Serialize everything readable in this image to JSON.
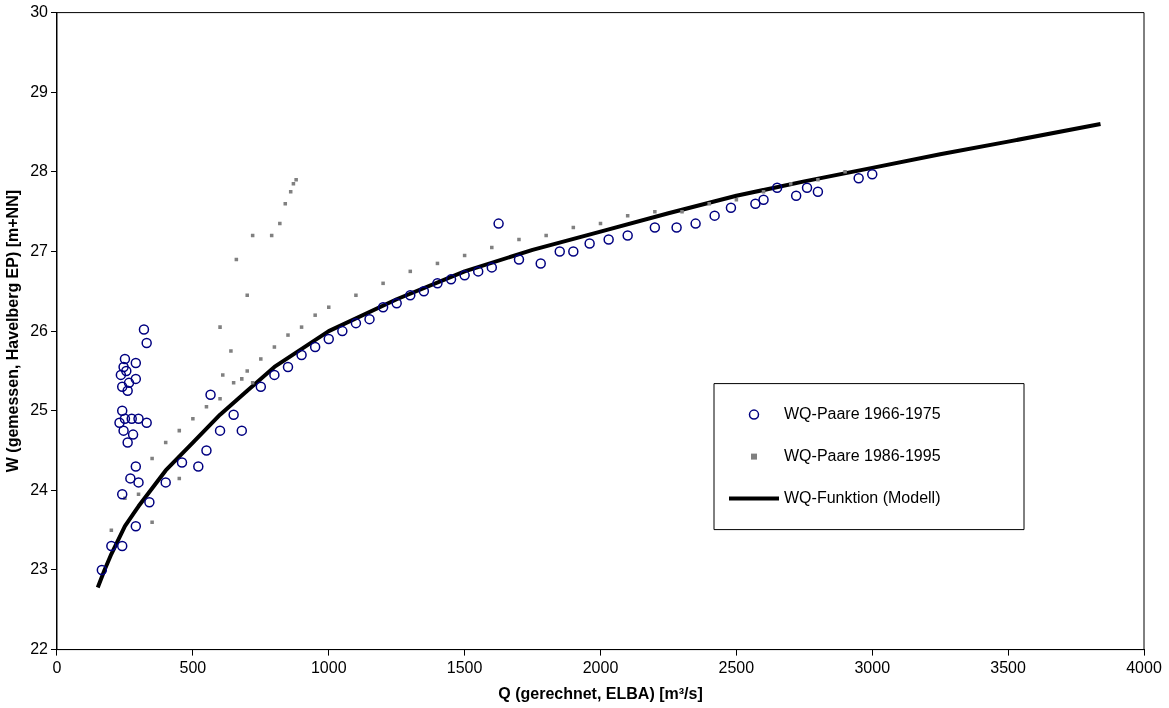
{
  "chart_data": {
    "type": "scatter",
    "xlabel": "Q (gerechnet, ELBA) [m³/s]",
    "ylabel": "W (gemessen, Havelberg EP) [m+NN]",
    "xlim": [
      0,
      4000
    ],
    "xticks": [
      0,
      500,
      1000,
      1500,
      2000,
      2500,
      3000,
      3500,
      4000
    ],
    "ylim": [
      22,
      30
    ],
    "yticks": [
      22,
      23,
      24,
      25,
      26,
      27,
      28,
      29,
      30
    ],
    "grid": false,
    "legend": "bottom right",
    "series": [
      {
        "name": "WQ-Paare 1966-1975",
        "marker": "circle",
        "color": "#000080",
        "x": [
          165,
          200,
          240,
          290,
          340,
          400,
          460,
          520,
          550,
          600,
          650,
          680,
          750,
          800,
          850,
          900,
          950,
          1000,
          1050,
          1100,
          1150,
          1200,
          1250,
          1300,
          1350,
          1400,
          1450,
          1500,
          1550,
          1600,
          1700,
          1780,
          1850,
          1900,
          1960,
          2030,
          2100,
          2200,
          2280,
          2350,
          2420,
          2480,
          2570,
          2600,
          2650,
          2720,
          2760,
          2800,
          2950,
          3000,
          230,
          240,
          250,
          240,
          235,
          245,
          250,
          255,
          265,
          260,
          290,
          275,
          300,
          280,
          245,
          260,
          330,
          320,
          330,
          290,
          565,
          1625,
          270,
          240,
          290,
          300
        ],
        "values": [
          23.0,
          23.3,
          23.3,
          23.55,
          23.85,
          24.1,
          24.35,
          24.3,
          24.5,
          24.75,
          24.95,
          24.75,
          25.3,
          25.45,
          25.55,
          25.7,
          25.8,
          25.9,
          26.0,
          26.1,
          26.15,
          26.3,
          26.35,
          26.45,
          26.5,
          26.6,
          26.65,
          26.7,
          26.75,
          26.8,
          26.9,
          26.85,
          27.0,
          27.0,
          27.1,
          27.15,
          27.2,
          27.3,
          27.3,
          27.35,
          27.45,
          27.55,
          27.6,
          27.65,
          27.8,
          27.7,
          27.8,
          27.75,
          27.92,
          27.97,
          24.85,
          25.0,
          24.9,
          25.3,
          25.45,
          25.55,
          25.65,
          25.5,
          25.35,
          25.25,
          25.4,
          24.9,
          24.9,
          24.7,
          24.75,
          24.6,
          24.85,
          26.02,
          25.85,
          25.6,
          25.2,
          27.35,
          24.15,
          23.95,
          24.3,
          24.1
        ]
      },
      {
        "name": "WQ-Paare 1986-1995",
        "marker": "square",
        "color": "#808080",
        "x": [
          200,
          250,
          300,
          350,
          400,
          450,
          500,
          550,
          600,
          650,
          700,
          750,
          800,
          850,
          900,
          950,
          1000,
          1100,
          1200,
          1300,
          1400,
          1500,
          1600,
          1700,
          1800,
          1900,
          2000,
          2100,
          2200,
          2300,
          2400,
          2500,
          2600,
          2700,
          2800,
          2900,
          350,
          450,
          880,
          870,
          860,
          840,
          820,
          790,
          720,
          660,
          700,
          600,
          640,
          610,
          680,
          720
        ],
        "values": [
          23.5,
          23.9,
          23.95,
          24.4,
          24.6,
          24.75,
          24.9,
          25.05,
          25.15,
          25.35,
          25.5,
          25.65,
          25.8,
          25.95,
          26.05,
          26.2,
          26.3,
          26.45,
          26.6,
          26.75,
          26.85,
          26.95,
          27.05,
          27.15,
          27.2,
          27.3,
          27.35,
          27.45,
          27.5,
          27.5,
          27.6,
          27.65,
          27.75,
          27.85,
          27.9,
          28.0,
          23.6,
          24.15,
          27.9,
          27.85,
          27.75,
          27.6,
          27.35,
          27.2,
          27.2,
          26.9,
          26.45,
          26.05,
          25.75,
          25.45,
          25.4,
          25.35
        ]
      },
      {
        "name": "WQ-Funktion (Modell)",
        "type": "line",
        "color": "#000000",
        "x": [
          150,
          175,
          200,
          250,
          300,
          400,
          500,
          600,
          700,
          800,
          1000,
          1250,
          1500,
          1750,
          2000,
          2250,
          2500,
          2750,
          3000,
          3250,
          3500,
          3840
        ],
        "values": [
          22.78,
          23.0,
          23.2,
          23.55,
          23.8,
          24.25,
          24.6,
          24.95,
          25.25,
          25.55,
          26.0,
          26.4,
          26.75,
          27.02,
          27.25,
          27.48,
          27.7,
          27.88,
          28.05,
          28.22,
          28.38,
          28.6
        ]
      }
    ]
  }
}
